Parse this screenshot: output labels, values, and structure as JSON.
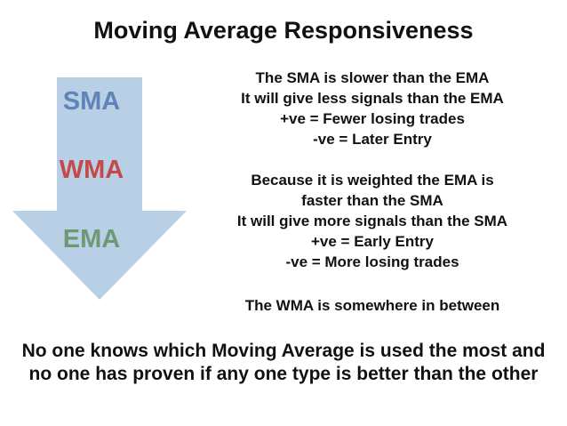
{
  "title": "Moving Average Responsiveness",
  "colors": {
    "arrow_fill": "#b9cfe6",
    "sma": "#5f84b8",
    "wma": "#c44a4a",
    "ema": "#6d9a75",
    "text": "#111111"
  },
  "arrow": {
    "labels": [
      {
        "text": "SMA",
        "color": "#5f84b8"
      },
      {
        "text": "WMA",
        "color": "#c44a4a"
      },
      {
        "text": "EMA",
        "color": "#6d9a75"
      }
    ]
  },
  "blocks": [
    {
      "lines": [
        "The SMA is slower than the EMA",
        "It will give less signals than the EMA",
        "+ve  =  Fewer losing trades",
        "-ve  =  Later Entry"
      ]
    },
    {
      "lines": [
        "Because it is weighted the EMA is",
        "faster than the SMA",
        "It will give more signals than the SMA",
        "+ve  =  Early Entry",
        "-ve  =  More losing trades"
      ]
    },
    {
      "lines": [
        "The WMA is somewhere in between"
      ]
    }
  ],
  "footer": [
    "No one knows which Moving Average is used the most and",
    "no one has proven if any one type is better than the other"
  ]
}
